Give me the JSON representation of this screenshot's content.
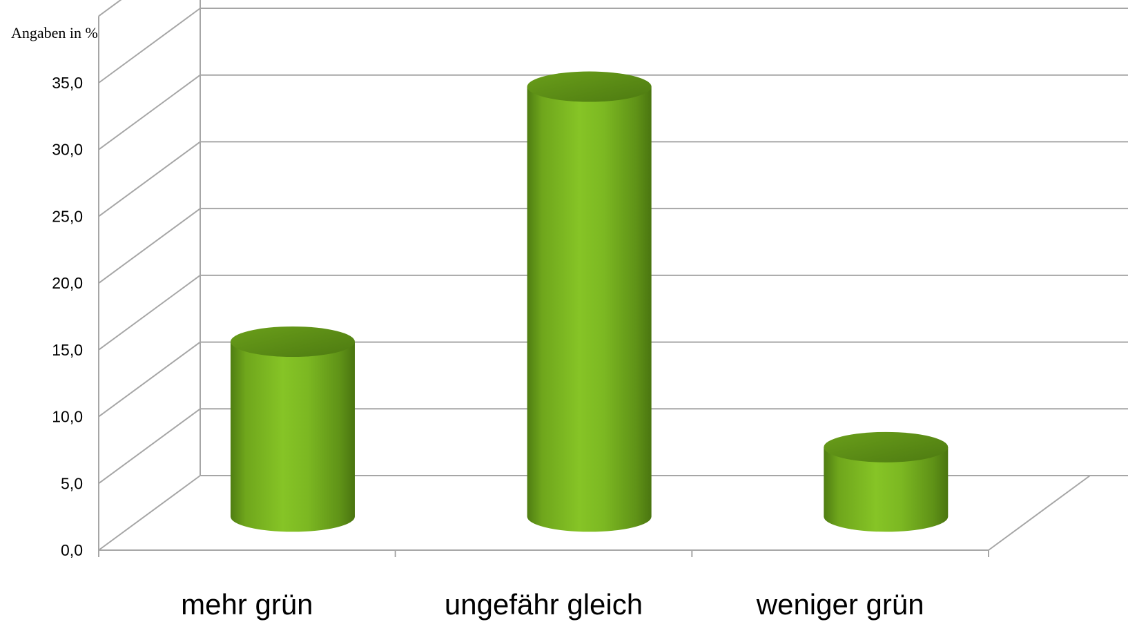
{
  "chart_data": {
    "type": "bar",
    "style": "3d-cylinder",
    "unit_label": "Angaben in %",
    "categories": [
      "mehr grün",
      "ungefähr gleich",
      "weniger grün"
    ],
    "values": [
      13.1,
      32.2,
      5.2
    ],
    "ylim": [
      0,
      35
    ],
    "yticks": [
      {
        "value": 0,
        "label": "0,0"
      },
      {
        "value": 5,
        "label": "5,0"
      },
      {
        "value": 10,
        "label": "10,0"
      },
      {
        "value": 15,
        "label": "15,0"
      },
      {
        "value": 20,
        "label": "20,0"
      },
      {
        "value": 25,
        "label": "25,0"
      },
      {
        "value": 30,
        "label": "30,0"
      },
      {
        "value": 35,
        "label": "35,0"
      }
    ],
    "grid": true,
    "legend": "none",
    "colors": {
      "bar_light": "#84c225",
      "bar_mid": "#6fa61c",
      "bar_dark": "#4f7d12",
      "bar_top": "#5e8f16",
      "grid": "#a6a6a6"
    }
  }
}
